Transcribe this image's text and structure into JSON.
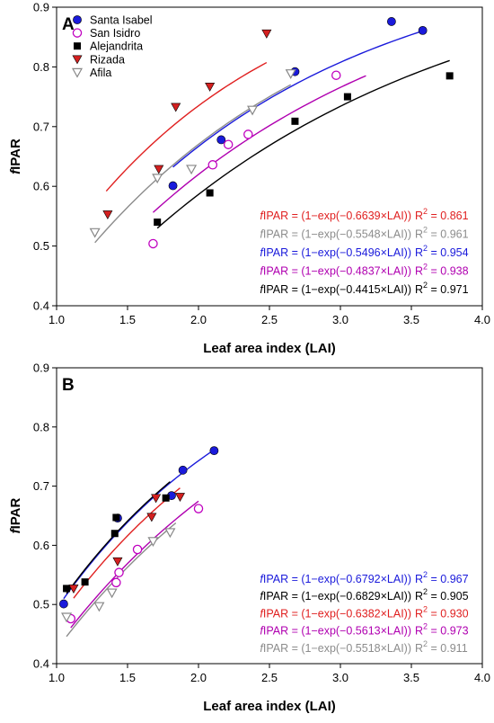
{
  "chart_data": [
    {
      "type": "scatter",
      "panel_label": "A",
      "xlabel": "Leaf area index (LAI)",
      "ylabel_italic": "f",
      "ylabel_rest": "IPAR",
      "xlim": [
        1.0,
        4.0
      ],
      "ylim": [
        0.4,
        0.9
      ],
      "xticks": [
        "1.0",
        "1.5",
        "2.0",
        "2.5",
        "3.0",
        "3.5",
        "4.0"
      ],
      "yticks": [
        "0.4",
        "0.5",
        "0.6",
        "0.7",
        "0.8",
        "0.9"
      ],
      "legend_position": "top-left",
      "series": [
        {
          "name": "Santa Isabel",
          "marker": "circle-filled",
          "color": "#1a1adb",
          "x": [
            1.82,
            2.16,
            2.68,
            3.36,
            3.58
          ],
          "y": [
            0.601,
            0.678,
            0.792,
            0.876,
            0.861
          ]
        },
        {
          "name": "San Isidro",
          "marker": "circle-open",
          "color": "#c000c0",
          "x": [
            1.68,
            2.1,
            2.21,
            2.35,
            2.97
          ],
          "y": [
            0.504,
            0.636,
            0.67,
            0.687,
            0.786
          ]
        },
        {
          "name": "Alejandrita",
          "marker": "square-filled",
          "color": "#000000",
          "x": [
            1.71,
            2.08,
            2.68,
            3.05,
            3.77
          ],
          "y": [
            0.54,
            0.589,
            0.709,
            0.75,
            0.785
          ]
        },
        {
          "name": "Rizada",
          "marker": "tri-down-filled",
          "color": "#d42020",
          "x": [
            1.36,
            1.72,
            1.84,
            2.08,
            2.48
          ],
          "y": [
            0.553,
            0.629,
            0.733,
            0.767,
            0.856
          ]
        },
        {
          "name": "Afila",
          "marker": "tri-down-open",
          "color": "#888888",
          "x": [
            1.27,
            1.71,
            1.95,
            2.38,
            2.65
          ],
          "y": [
            0.523,
            0.614,
            0.629,
            0.728,
            0.789
          ]
        }
      ],
      "fits": [
        {
          "color": "#e02020",
          "k": 0.6639,
          "x_range": [
            1.35,
            2.48
          ],
          "eq": "IPAR = (1−exp(−0.6639×LAI))",
          "r2": "0.861"
        },
        {
          "color": "#8c8c8c",
          "k": 0.5548,
          "x_range": [
            1.27,
            2.65
          ],
          "eq": "IPAR = (1−exp(−0.5548×LAI))",
          "r2": "0.961"
        },
        {
          "color": "#1a1adb",
          "k": 0.5496,
          "x_range": [
            1.82,
            3.58
          ],
          "eq": "IPAR = (1−exp(−0.5496×LAI))",
          "r2": "0.954"
        },
        {
          "color": "#b000b0",
          "k": 0.4837,
          "x_range": [
            1.68,
            3.18
          ],
          "eq": "IPAR = (1−exp(−0.4837×LAI))",
          "r2": "0.938"
        },
        {
          "color": "#000000",
          "k": 0.4415,
          "x_range": [
            1.71,
            3.77
          ],
          "eq": "IPAR = (1−exp(−0.4415×LAI))",
          "r2": "0.971"
        }
      ],
      "r2_label": "R",
      "r2_sup": "2",
      "r2_sep": " = "
    },
    {
      "type": "scatter",
      "panel_label": "B",
      "xlabel": "Leaf area index (LAI)",
      "ylabel_italic": "f",
      "ylabel_rest": "IPAR",
      "xlim": [
        1.0,
        4.0
      ],
      "ylim": [
        0.4,
        0.9
      ],
      "xticks": [
        "1.0",
        "1.5",
        "2.0",
        "2.5",
        "3.0",
        "3.5",
        "4.0"
      ],
      "yticks": [
        "0.4",
        "0.5",
        "0.6",
        "0.7",
        "0.8",
        "0.9"
      ],
      "series": [
        {
          "name": "Santa Isabel",
          "marker": "circle-filled",
          "color": "#1a1adb",
          "x": [
            1.05,
            1.43,
            1.81,
            1.89,
            2.11
          ],
          "y": [
            0.501,
            0.646,
            0.684,
            0.727,
            0.76
          ]
        },
        {
          "name": "San Isidro",
          "marker": "circle-open",
          "color": "#c000c0",
          "x": [
            1.1,
            1.42,
            1.44,
            1.57,
            2.0
          ],
          "y": [
            0.476,
            0.537,
            0.554,
            0.593,
            0.662
          ]
        },
        {
          "name": "Alejandrita",
          "marker": "square-filled",
          "color": "#000000",
          "x": [
            1.07,
            1.2,
            1.41,
            1.42,
            1.77
          ],
          "y": [
            0.527,
            0.538,
            0.62,
            0.647,
            0.68
          ]
        },
        {
          "name": "Rizada",
          "marker": "tri-down-filled",
          "color": "#d42020",
          "x": [
            1.12,
            1.43,
            1.67,
            1.7,
            1.87
          ],
          "y": [
            0.527,
            0.573,
            0.648,
            0.68,
            0.682
          ]
        },
        {
          "name": "Afila",
          "marker": "tri-down-open",
          "color": "#888888",
          "x": [
            1.07,
            1.3,
            1.39,
            1.68,
            1.8
          ],
          "y": [
            0.479,
            0.497,
            0.52,
            0.607,
            0.622
          ]
        }
      ],
      "fits": [
        {
          "color": "#1a1adb",
          "k": 0.6792,
          "x_range": [
            1.05,
            2.11
          ],
          "eq": "IPAR = (1−exp(−0.6792×LAI))",
          "r2": "0.967"
        },
        {
          "color": "#000000",
          "k": 0.6829,
          "x_range": [
            1.07,
            1.8
          ],
          "eq": "IPAR = (1−exp(−0.6829×LAI))",
          "r2": "0.905"
        },
        {
          "color": "#e02020",
          "k": 0.6382,
          "x_range": [
            1.12,
            1.87
          ],
          "eq": "IPAR = (1−exp(−0.6382×LAI))",
          "r2": "0.930"
        },
        {
          "color": "#b000b0",
          "k": 0.5613,
          "x_range": [
            1.1,
            2.0
          ],
          "eq": "IPAR = (1−exp(−0.5613×LAI))",
          "r2": "0.973"
        },
        {
          "color": "#8c8c8c",
          "k": 0.5518,
          "x_range": [
            1.07,
            1.84
          ],
          "eq": "IPAR = (1−exp(−0.5518×LAI))",
          "r2": "0.911"
        }
      ],
      "r2_label": "R",
      "r2_sup": "2",
      "r2_sep": " = "
    }
  ]
}
